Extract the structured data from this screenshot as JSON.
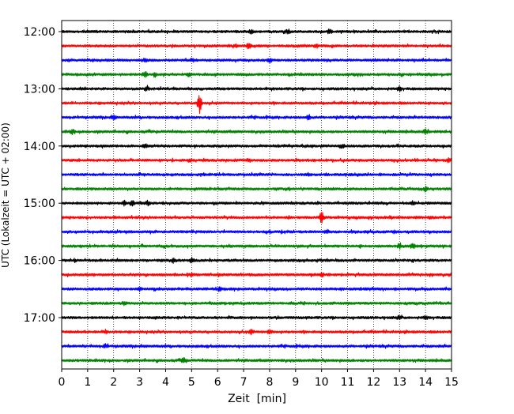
{
  "chart_data": {
    "type": "line",
    "title": "",
    "xlabel": "Zeit  [min]",
    "ylabel": "UTC (Lokalzeit = UTC + 02:00)",
    "xlim": [
      0,
      15
    ],
    "x_ticks": [
      "0",
      "1",
      "2",
      "3",
      "4",
      "5",
      "6",
      "7",
      "8",
      "9",
      "10",
      "11",
      "12",
      "13",
      "14",
      "15"
    ],
    "y_tick_labels": [
      "12:00",
      "13:00",
      "14:00",
      "15:00",
      "16:00",
      "17:00"
    ],
    "grid": "vertical dotted lines at each minute",
    "row_interval_minutes": 15,
    "color_cycle": [
      "#000000",
      "#ff0000",
      "#0000ff",
      "#008000"
    ],
    "rows": [
      {
        "start": "12:00",
        "color": "#000000",
        "events": [
          {
            "t": 7.3,
            "amp": 1.6
          },
          {
            "t": 8.7,
            "amp": 1.4
          },
          {
            "t": 10.3,
            "amp": 1.5
          }
        ]
      },
      {
        "start": "12:15",
        "color": "#ff0000",
        "events": [
          {
            "t": 7.2,
            "amp": 1.8
          },
          {
            "t": 6.7,
            "amp": 1.2
          },
          {
            "t": 9.8,
            "amp": 1.2
          }
        ]
      },
      {
        "start": "12:30",
        "color": "#0000ff",
        "events": [
          {
            "t": 3.2,
            "amp": 1.0
          },
          {
            "t": 8.0,
            "amp": 1.0
          }
        ]
      },
      {
        "start": "12:45",
        "color": "#008000",
        "events": [
          {
            "t": 3.2,
            "amp": 1.8
          },
          {
            "t": 3.6,
            "amp": 1.3
          },
          {
            "t": 4.9,
            "amp": 1.2
          }
        ]
      },
      {
        "start": "13:00",
        "color": "#000000",
        "events": [
          {
            "t": 3.3,
            "amp": 1.0
          },
          {
            "t": 13.0,
            "amp": 1.5
          }
        ]
      },
      {
        "start": "13:15",
        "color": "#ff0000",
        "events": [
          {
            "t": 5.3,
            "amp": 7.5
          }
        ]
      },
      {
        "start": "13:30",
        "color": "#0000ff",
        "events": [
          {
            "t": 2.0,
            "amp": 1.2
          },
          {
            "t": 9.5,
            "amp": 1.8
          }
        ]
      },
      {
        "start": "13:45",
        "color": "#008000",
        "events": [
          {
            "t": 0.4,
            "amp": 1.6
          },
          {
            "t": 14.0,
            "amp": 1.5
          }
        ]
      },
      {
        "start": "14:00",
        "color": "#000000",
        "events": [
          {
            "t": 10.8,
            "amp": 1.6
          },
          {
            "t": 3.2,
            "amp": 1.0
          }
        ]
      },
      {
        "start": "14:15",
        "color": "#ff0000",
        "events": [
          {
            "t": 4.9,
            "amp": 1.0
          },
          {
            "t": 7.2,
            "amp": 1.0
          },
          {
            "t": 14.9,
            "amp": 1.3
          }
        ]
      },
      {
        "start": "14:30",
        "color": "#0000ff",
        "events": [
          {
            "t": 9.5,
            "amp": 1.0
          }
        ]
      },
      {
        "start": "14:45",
        "color": "#008000",
        "events": [
          {
            "t": 14.0,
            "amp": 1.4
          }
        ]
      },
      {
        "start": "15:00",
        "color": "#000000",
        "events": [
          {
            "t": 2.4,
            "amp": 1.4
          },
          {
            "t": 2.7,
            "amp": 2.4
          },
          {
            "t": 3.3,
            "amp": 1.5
          },
          {
            "t": 13.5,
            "amp": 1.1
          }
        ]
      },
      {
        "start": "15:15",
        "color": "#ff0000",
        "events": [
          {
            "t": 10.0,
            "amp": 4.8
          },
          {
            "t": 14.2,
            "amp": 1.0
          }
        ]
      },
      {
        "start": "15:30",
        "color": "#0000ff",
        "events": [
          {
            "t": 10.2,
            "amp": 1.3
          },
          {
            "t": 12.8,
            "amp": 1.0
          }
        ]
      },
      {
        "start": "15:45",
        "color": "#008000",
        "events": [
          {
            "t": 11.5,
            "amp": 1.0
          },
          {
            "t": 13.0,
            "amp": 1.7
          },
          {
            "t": 13.5,
            "amp": 2.3
          }
        ]
      },
      {
        "start": "16:00",
        "color": "#000000",
        "events": [
          {
            "t": 0.5,
            "amp": 1.1
          },
          {
            "t": 4.3,
            "amp": 1.4
          },
          {
            "t": 5.0,
            "amp": 1.9
          }
        ]
      },
      {
        "start": "16:15",
        "color": "#ff0000",
        "events": [
          {
            "t": 5.0,
            "amp": 1.5
          },
          {
            "t": 10.0,
            "amp": 1.2
          }
        ]
      },
      {
        "start": "16:30",
        "color": "#0000ff",
        "events": [
          {
            "t": 3.0,
            "amp": 1.2
          },
          {
            "t": 6.1,
            "amp": 1.0
          }
        ]
      },
      {
        "start": "16:45",
        "color": "#008000",
        "events": [
          {
            "t": 2.4,
            "amp": 1.0
          }
        ]
      },
      {
        "start": "17:00",
        "color": "#000000",
        "events": [
          {
            "t": 13.0,
            "amp": 1.2
          },
          {
            "t": 14.0,
            "amp": 1.2
          }
        ]
      },
      {
        "start": "17:15",
        "color": "#ff0000",
        "events": [
          {
            "t": 1.7,
            "amp": 1.5
          },
          {
            "t": 7.3,
            "amp": 1.8
          },
          {
            "t": 8.0,
            "amp": 1.5
          }
        ]
      },
      {
        "start": "17:30",
        "color": "#0000ff",
        "events": [
          {
            "t": 1.7,
            "amp": 1.5
          }
        ]
      },
      {
        "start": "17:45",
        "color": "#008000",
        "events": [
          {
            "t": 4.7,
            "amp": 2.2
          }
        ]
      }
    ]
  }
}
